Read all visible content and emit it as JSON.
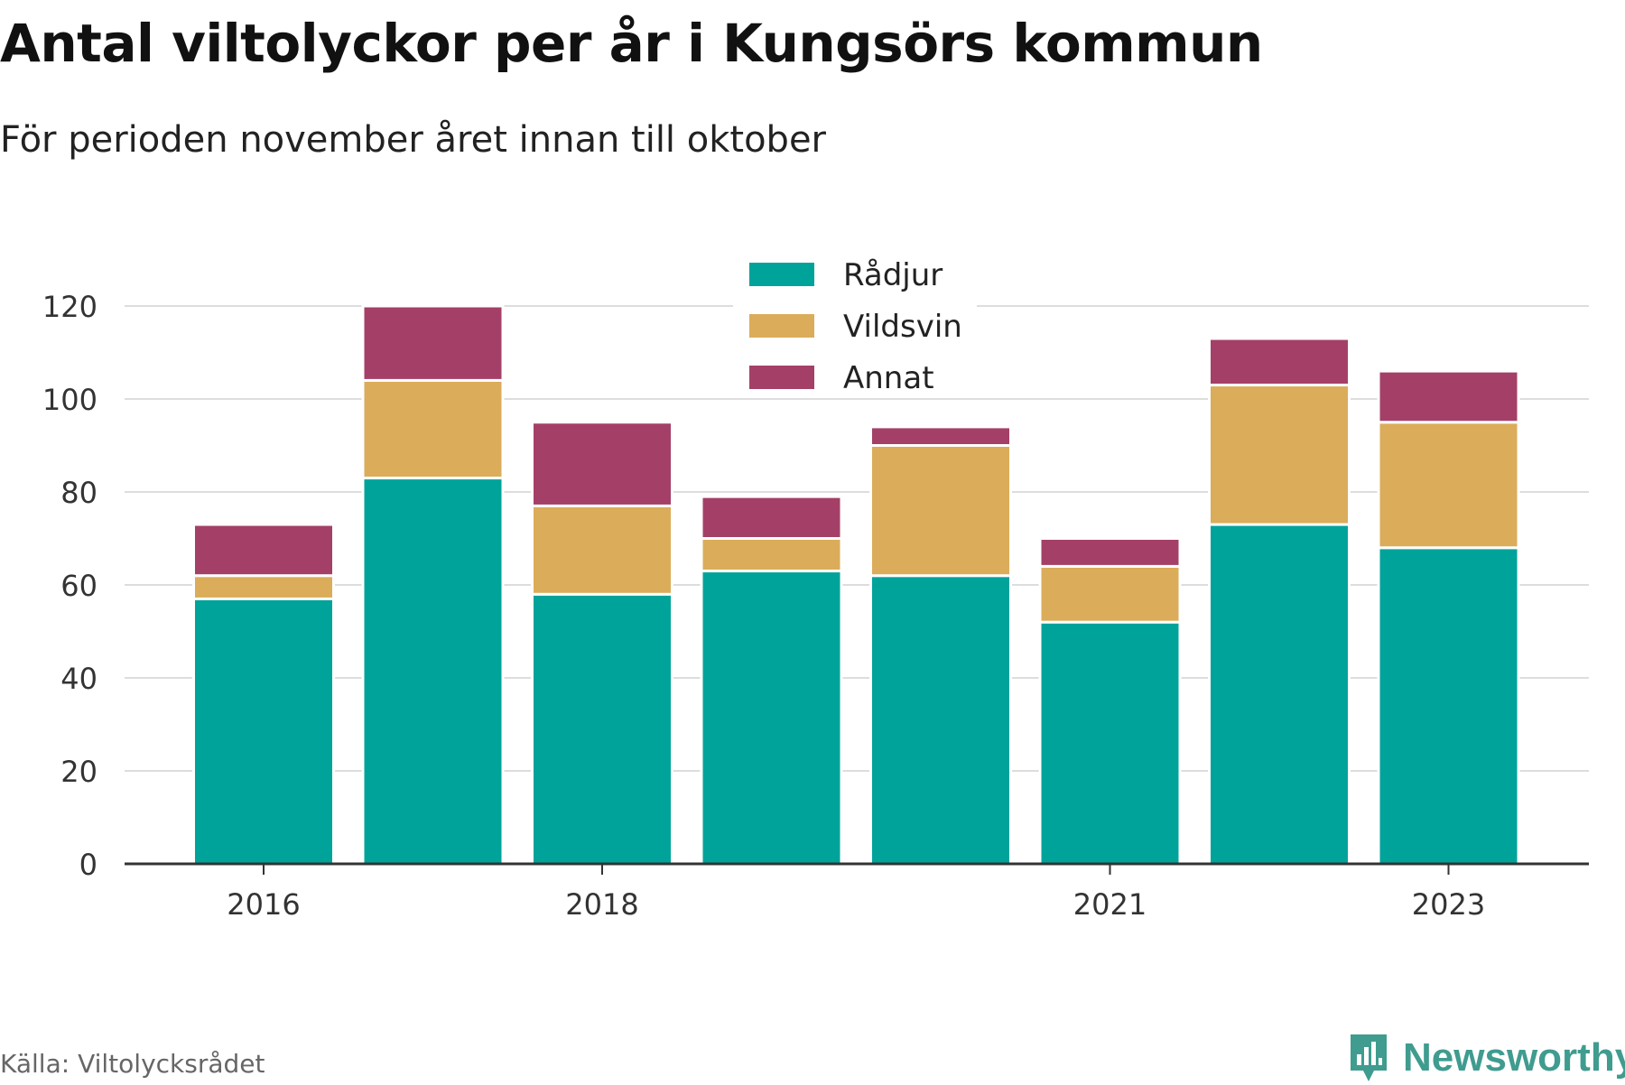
{
  "title": "Antal viltolyckor per år i Kungsörs kommun",
  "subtitle": "För perioden november året innan till oktober",
  "source": "Källa: Viltolycksrådet",
  "brand": "Newsworthy",
  "colors": {
    "radjur": "#00a39a",
    "vildsvin": "#dbac5a",
    "annat": "#a44067",
    "grid": "#dddddd",
    "axis": "#333333",
    "brand": "#3f9c8f"
  },
  "chart_data": {
    "type": "bar",
    "stacked": true,
    "categories": [
      "2016",
      "2017",
      "2018",
      "2019",
      "2020",
      "2021",
      "2022",
      "2023"
    ],
    "x_tick_labels": [
      "2016",
      "",
      "2018",
      "",
      "",
      "2021",
      "",
      "2023"
    ],
    "series": [
      {
        "name": "Rådjur",
        "color": "#00a39a",
        "values": [
          57,
          83,
          58,
          63,
          62,
          52,
          73,
          68
        ]
      },
      {
        "name": "Vildsvin",
        "color": "#dbac5a",
        "values": [
          5,
          21,
          19,
          7,
          28,
          12,
          30,
          27
        ]
      },
      {
        "name": "Annat",
        "color": "#a44067",
        "values": [
          11,
          16,
          18,
          9,
          4,
          6,
          10,
          11
        ]
      }
    ],
    "ylim": [
      0,
      120
    ],
    "yticks": [
      0,
      20,
      40,
      60,
      80,
      100,
      120
    ],
    "grid": true,
    "legend_position": "top-center"
  }
}
